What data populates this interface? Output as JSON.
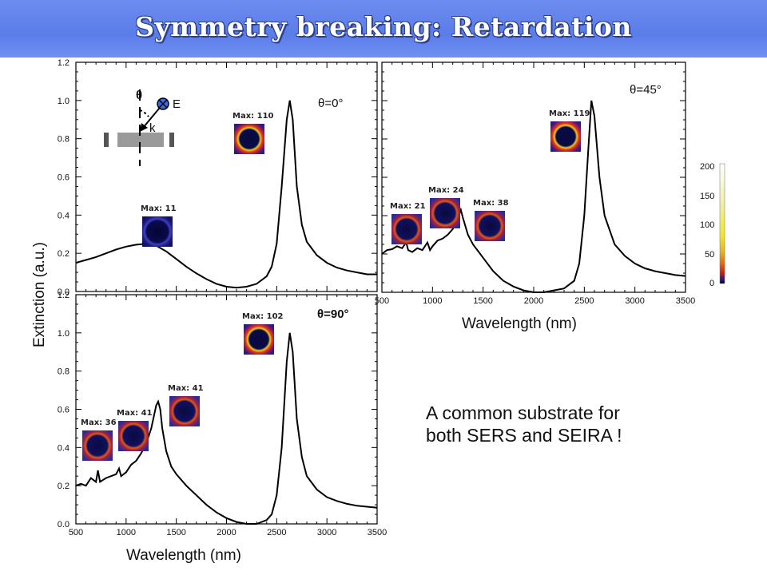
{
  "header": {
    "title": "Symmetry breaking: Retardation"
  },
  "note": {
    "line1": "A common substrate for",
    "line2": "both SERS and SEIRA !"
  },
  "shared": {
    "xlabel": "Wavelength (nm)",
    "ylabel": "Extinction (a.u.)"
  },
  "colorbar": {
    "ticks": [
      "200",
      "150",
      "100",
      "50",
      "0"
    ]
  },
  "inset": {
    "theta": "θ",
    "e": "E",
    "k": "k"
  },
  "colors": {
    "header": "#5b7de8",
    "curve": "#000000"
  },
  "chart_data": [
    {
      "type": "line",
      "panel": "theta-0",
      "annotation": "θ=0°",
      "xlim": [
        500,
        3500
      ],
      "ylim": [
        0.0,
        1.2
      ],
      "x_ticks": [
        "500",
        "1000",
        "1500",
        "2000",
        "2500",
        "3000",
        "3500"
      ],
      "y_ticks": [
        "0.0",
        "0.2",
        "0.4",
        "0.6",
        "0.8",
        "1.0",
        "1.2"
      ],
      "x": [
        500,
        600,
        700,
        800,
        900,
        1000,
        1100,
        1200,
        1300,
        1400,
        1500,
        1600,
        1700,
        1800,
        1900,
        2000,
        2100,
        2200,
        2300,
        2400,
        2450,
        2500,
        2550,
        2600,
        2630,
        2660,
        2700,
        2750,
        2800,
        2900,
        3000,
        3100,
        3200,
        3300,
        3400,
        3500
      ],
      "y": [
        0.15,
        0.165,
        0.18,
        0.2,
        0.22,
        0.235,
        0.245,
        0.25,
        0.24,
        0.21,
        0.17,
        0.13,
        0.095,
        0.065,
        0.04,
        0.025,
        0.02,
        0.025,
        0.04,
        0.08,
        0.13,
        0.25,
        0.55,
        0.9,
        1.0,
        0.9,
        0.55,
        0.35,
        0.26,
        0.19,
        0.15,
        0.125,
        0.11,
        0.1,
        0.09,
        0.09
      ],
      "field_maps": [
        {
          "label": "Max: 11",
          "x": 1300
        },
        {
          "label": "Max: 110",
          "x": 2620
        }
      ]
    },
    {
      "type": "line",
      "panel": "theta-45",
      "annotation": "θ=45°",
      "xlim": [
        500,
        3500
      ],
      "ylim": [
        0.0,
        1.2
      ],
      "x_ticks": [
        "500",
        "1000",
        "1500",
        "2000",
        "2500",
        "3000",
        "3500"
      ],
      "x": [
        500,
        550,
        600,
        650,
        700,
        740,
        760,
        800,
        850,
        900,
        950,
        975,
        1000,
        1050,
        1100,
        1150,
        1200,
        1230,
        1260,
        1280,
        1300,
        1350,
        1400,
        1500,
        1600,
        1700,
        1800,
        1900,
        2000,
        2100,
        2200,
        2300,
        2400,
        2450,
        2500,
        2540,
        2570,
        2600,
        2650,
        2700,
        2800,
        2900,
        3000,
        3100,
        3200,
        3300,
        3400,
        3500
      ],
      "y": [
        0.2,
        0.22,
        0.225,
        0.24,
        0.23,
        0.26,
        0.22,
        0.21,
        0.23,
        0.22,
        0.26,
        0.22,
        0.24,
        0.27,
        0.28,
        0.3,
        0.33,
        0.36,
        0.4,
        0.43,
        0.39,
        0.3,
        0.25,
        0.18,
        0.11,
        0.06,
        0.03,
        0.01,
        0.0,
        0.0,
        0.01,
        0.02,
        0.06,
        0.15,
        0.4,
        0.75,
        1.0,
        0.92,
        0.6,
        0.4,
        0.25,
        0.19,
        0.15,
        0.125,
        0.11,
        0.1,
        0.09,
        0.085
      ],
      "field_maps": [
        {
          "label": "Max: 21",
          "x": 730
        },
        {
          "label": "Max: 24",
          "x": 1000
        },
        {
          "label": "Max: 38",
          "x": 1290
        },
        {
          "label": "Max: 119",
          "x": 2580
        }
      ]
    },
    {
      "type": "line",
      "panel": "theta-90",
      "annotation": "θ=90°",
      "xlim": [
        500,
        3500
      ],
      "ylim": [
        0.0,
        1.2
      ],
      "x_ticks": [
        "500",
        "1000",
        "1500",
        "2000",
        "2500",
        "3000",
        "3500"
      ],
      "y_ticks": [
        "0.0",
        "0.2",
        "0.4",
        "0.6",
        "0.8",
        "1.0",
        "1.2"
      ],
      "x": [
        500,
        550,
        600,
        650,
        700,
        720,
        740,
        800,
        850,
        900,
        930,
        950,
        1000,
        1050,
        1100,
        1150,
        1200,
        1250,
        1300,
        1320,
        1340,
        1360,
        1400,
        1450,
        1500,
        1600,
        1700,
        1800,
        1900,
        2000,
        2100,
        2200,
        2300,
        2400,
        2450,
        2500,
        2550,
        2600,
        2630,
        2660,
        2700,
        2750,
        2800,
        2900,
        3000,
        3100,
        3200,
        3300,
        3400,
        3500
      ],
      "y": [
        0.2,
        0.21,
        0.2,
        0.24,
        0.22,
        0.28,
        0.22,
        0.24,
        0.25,
        0.26,
        0.29,
        0.25,
        0.27,
        0.31,
        0.33,
        0.37,
        0.42,
        0.5,
        0.62,
        0.64,
        0.6,
        0.5,
        0.38,
        0.3,
        0.26,
        0.2,
        0.15,
        0.1,
        0.06,
        0.03,
        0.01,
        0.0,
        0.0,
        0.02,
        0.05,
        0.15,
        0.4,
        0.85,
        1.0,
        0.9,
        0.55,
        0.35,
        0.25,
        0.18,
        0.14,
        0.12,
        0.105,
        0.095,
        0.09,
        0.085
      ],
      "field_maps": [
        {
          "label": "Max: 36",
          "x": 640
        },
        {
          "label": "Max: 41",
          "x": 900
        },
        {
          "label": "Max: 41",
          "x": 1400
        },
        {
          "label": "Max: 102",
          "x": 2500
        }
      ]
    }
  ]
}
